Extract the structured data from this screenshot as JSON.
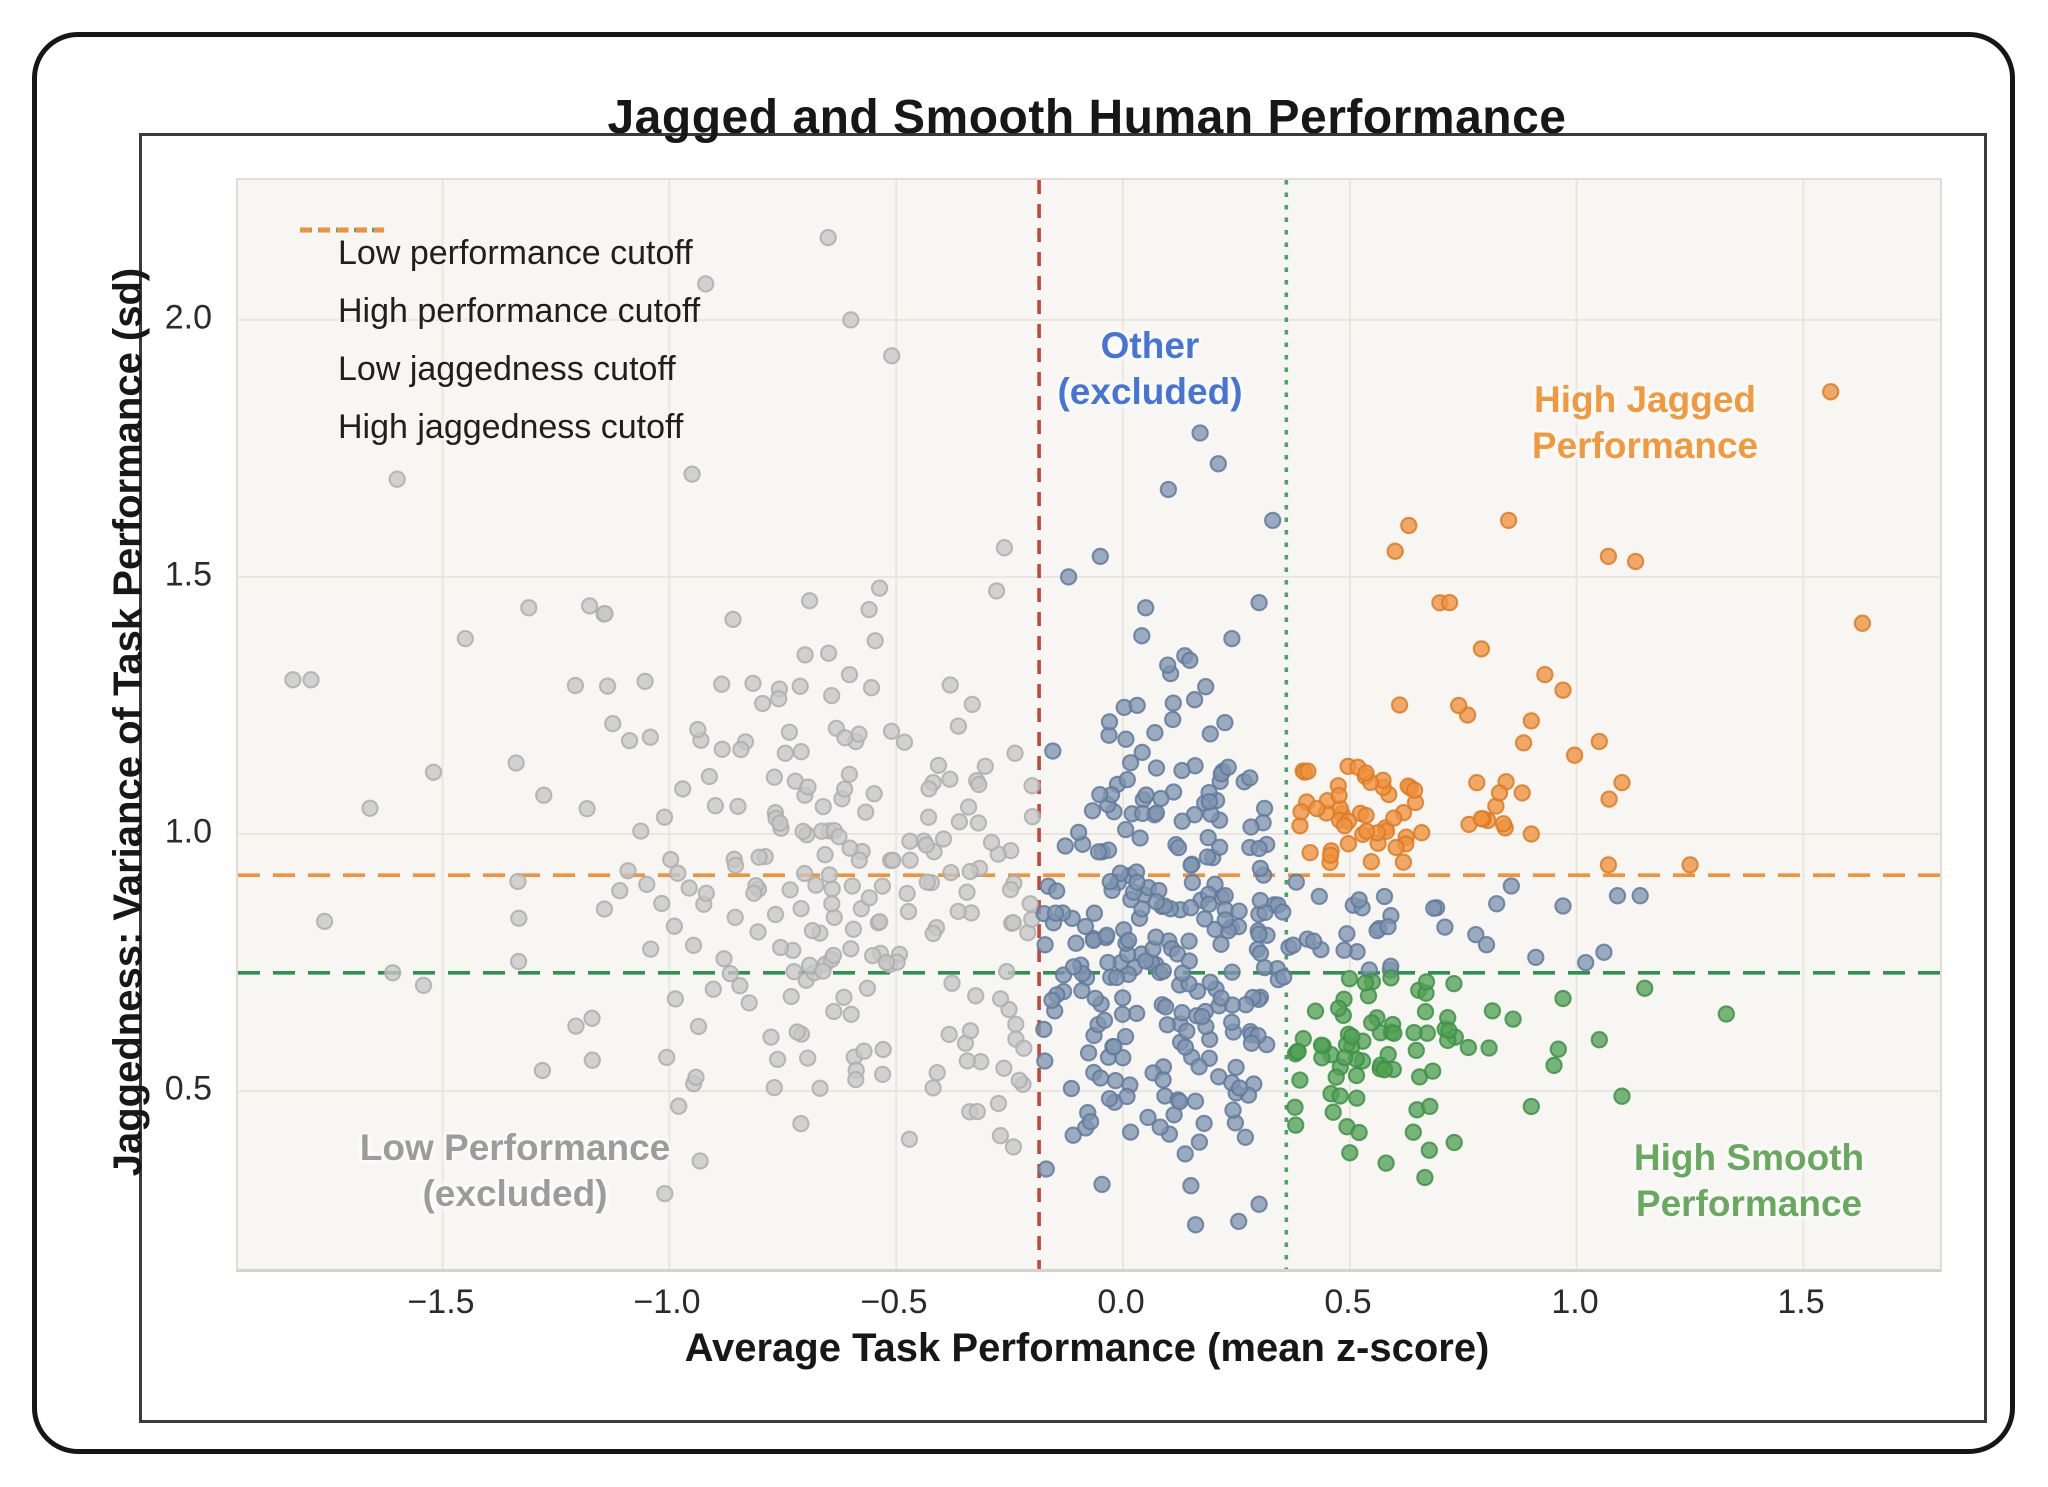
{
  "chart_data": {
    "type": "scatter",
    "title": "Jagged and Smooth Human Performance",
    "xlabel": "Average Task Performance (mean z-score)",
    "ylabel": "Jaggedness: Variance of Task Performance (sd)",
    "xlim": [
      -1.951,
      1.801
    ],
    "ylim": [
      0.154,
      2.272
    ],
    "xticks": [
      {
        "v": -1.5,
        "label": "−1.5"
      },
      {
        "v": -1.0,
        "label": "−1.0"
      },
      {
        "v": -0.5,
        "label": "−0.5"
      },
      {
        "v": 0.0,
        "label": "0.0"
      },
      {
        "v": 0.5,
        "label": "0.5"
      },
      {
        "v": 1.0,
        "label": "1.0"
      },
      {
        "v": 1.5,
        "label": "1.5"
      }
    ],
    "yticks": [
      {
        "v": 0.5,
        "label": "0.5"
      },
      {
        "v": 1.0,
        "label": "1.0"
      },
      {
        "v": 1.5,
        "label": "1.5"
      },
      {
        "v": 2.0,
        "label": "2.0"
      }
    ],
    "grid": true,
    "plot_background": "#f7f6f3",
    "grid_color": "#e9e6e0",
    "legend_position": "upper left",
    "cutoffs": [
      {
        "name": "low-performance-cutoff",
        "label": "Low performance cutoff",
        "orientation": "vertical",
        "value": -0.185,
        "color": "#c0483d",
        "style": "dashed"
      },
      {
        "name": "high-performance-cutoff",
        "label": "High performance cutoff",
        "orientation": "vertical",
        "value": 0.36,
        "color": "#4ca36b",
        "style": "dotted"
      },
      {
        "name": "low-jaggedness-cutoff",
        "label": "Low jaggedness cutoff",
        "orientation": "horizontal",
        "value": 0.73,
        "color": "#2f9150",
        "style": "dashed"
      },
      {
        "name": "high-jaggedness-cutoff",
        "label": "High jaggedness cutoff",
        "orientation": "horizontal",
        "value": 0.92,
        "color": "#f0943c",
        "style": "dashed"
      }
    ],
    "seed": 20240613,
    "point_style": {
      "radius": 7.6,
      "fill_opacity": 0.78,
      "stroke_width": 2.1,
      "stroke_opacity": 0.85
    },
    "groups": [
      {
        "name": "low-performance-excluded",
        "label": "Low Performance (excluded)",
        "fill": "#c7c7c7",
        "stroke": "#aeaeae",
        "clusters": [
          {
            "n": 150,
            "cx": -0.48,
            "cy": 0.88,
            "sx": 0.3,
            "sy": 0.24
          },
          {
            "n": 60,
            "cx": -0.85,
            "cy": 1.05,
            "sx": 0.38,
            "sy": 0.3
          },
          {
            "n": 30,
            "cx": -0.45,
            "cy": 0.62,
            "sx": 0.34,
            "sy": 0.14
          }
        ],
        "bounds": {
          "xmin": -1.93,
          "xmax": -0.195,
          "ymin": 0.28,
          "ymax": 2.2
        },
        "outliers": [
          [
            -0.65,
            2.16
          ],
          [
            -0.92,
            2.07
          ],
          [
            -1.6,
            1.69
          ],
          [
            -1.83,
            1.3
          ],
          [
            -1.79,
            1.3
          ],
          [
            -1.45,
            1.38
          ],
          [
            -1.31,
            1.44
          ],
          [
            -1.66,
            1.05
          ],
          [
            -1.52,
            1.12
          ],
          [
            -1.76,
            0.83
          ],
          [
            -1.28,
            0.54
          ],
          [
            -1.61,
            0.73
          ],
          [
            -0.6,
            2.0
          ],
          [
            -0.51,
            1.93
          ],
          [
            -1.17,
            0.56
          ],
          [
            -0.95,
            1.7
          ]
        ]
      },
      {
        "name": "other-excluded",
        "label": "Other (excluded)",
        "fill": "#8095b0",
        "stroke": "#61799b",
        "clusters": [
          {
            "n": 170,
            "cx": 0.05,
            "cy": 0.82,
            "sx": 0.2,
            "sy": 0.2
          },
          {
            "n": 55,
            "cx": 0.1,
            "cy": 1.07,
            "sx": 0.16,
            "sy": 0.16
          },
          {
            "n": 40,
            "cx": 0.17,
            "cy": 0.6,
            "sx": 0.18,
            "sy": 0.12
          },
          {
            "n": 32,
            "cx": 0.55,
            "cy": 0.825,
            "sx": 0.19,
            "sy": 0.05
          }
        ],
        "bounds": {
          "xmin": -0.175,
          "xmax": 1.35,
          "ymin": 0.2,
          "ymax": 2.15
        },
        "band": {
          "x": 0.355,
          "ymin": 0.735,
          "ymax": 0.915
        },
        "outliers": [
          [
            0.21,
            1.72
          ],
          [
            0.17,
            1.78
          ],
          [
            0.33,
            1.61
          ],
          [
            -0.05,
            1.54
          ],
          [
            0.1,
            1.67
          ],
          [
            0.3,
            1.45
          ],
          [
            0.24,
            1.38
          ],
          [
            -0.12,
            1.5
          ],
          [
            0.05,
            1.44
          ],
          [
            1.09,
            0.88
          ],
          [
            1.02,
            0.75
          ],
          [
            1.06,
            0.77
          ],
          [
            0.97,
            0.86
          ],
          [
            1.14,
            0.88
          ],
          [
            0.91,
            0.76
          ],
          [
            0.3,
            0.28
          ],
          [
            0.16,
            0.24
          ]
        ]
      },
      {
        "name": "high-jagged-performance",
        "label": "High Jagged Performance",
        "fill": "#f0923d",
        "stroke": "#da7b24",
        "clusters": [
          {
            "n": 40,
            "cx": 0.5,
            "cy": 1.01,
            "sx": 0.1,
            "sy": 0.065
          },
          {
            "n": 22,
            "cx": 0.7,
            "cy": 1.13,
            "sx": 0.17,
            "sy": 0.11
          }
        ],
        "bounds": {
          "xmin": 0.375,
          "xmax": 1.7,
          "ymin": 0.935,
          "ymax": 2.05
        },
        "outliers": [
          [
            1.56,
            1.86
          ],
          [
            1.63,
            1.41
          ],
          [
            1.13,
            1.53
          ],
          [
            1.07,
            1.54
          ],
          [
            0.85,
            1.61
          ],
          [
            0.63,
            1.6
          ],
          [
            0.6,
            1.55
          ],
          [
            0.72,
            1.45
          ],
          [
            0.79,
            1.36
          ],
          [
            0.93,
            1.31
          ],
          [
            0.74,
            1.25
          ],
          [
            0.97,
            1.28
          ],
          [
            1.05,
            1.18
          ],
          [
            1.1,
            1.1
          ],
          [
            0.78,
            1.1
          ],
          [
            0.9,
            1.0
          ],
          [
            1.07,
            0.94
          ],
          [
            1.25,
            0.94
          ],
          [
            0.83,
            1.08
          ],
          [
            0.88,
            1.08
          ],
          [
            0.79,
            1.03
          ],
          [
            0.9,
            1.22
          ]
        ]
      },
      {
        "name": "high-smooth-performance",
        "label": "High Smooth Performance",
        "fill": "#52a156",
        "stroke": "#3f8f46",
        "clusters": [
          {
            "n": 55,
            "cx": 0.52,
            "cy": 0.57,
            "sx": 0.11,
            "sy": 0.085
          },
          {
            "n": 16,
            "cx": 0.73,
            "cy": 0.6,
            "sx": 0.14,
            "sy": 0.075
          }
        ],
        "bounds": {
          "xmin": 0.375,
          "xmax": 1.42,
          "ymin": 0.33,
          "ymax": 0.725
        },
        "outliers": [
          [
            1.1,
            0.49
          ],
          [
            1.33,
            0.65
          ],
          [
            0.97,
            0.68
          ],
          [
            1.05,
            0.6
          ],
          [
            0.9,
            0.47
          ],
          [
            0.73,
            0.4
          ],
          [
            0.58,
            0.36
          ],
          [
            0.5,
            0.38
          ],
          [
            0.64,
            0.42
          ],
          [
            0.86,
            0.64
          ],
          [
            0.95,
            0.55
          ],
          [
            1.15,
            0.7
          ]
        ]
      }
    ],
    "annotations": [
      {
        "name": "other-label",
        "lines": [
          "Other",
          "(excluded)"
        ],
        "color": "#4775d6",
        "x": 0.06,
        "y": 1.905
      },
      {
        "name": "high-jagged-label",
        "lines": [
          "High Jagged",
          "Performance"
        ],
        "color": "#f2983d",
        "x": 1.15,
        "y": 1.8
      },
      {
        "name": "low-performance-label",
        "lines": [
          "Low Performance",
          "(excluded)"
        ],
        "color": "#9c9c9c",
        "x": -1.34,
        "y": 0.345
      },
      {
        "name": "high-smooth-label",
        "lines": [
          "High Smooth",
          "Performance"
        ],
        "color": "#68a95d",
        "x": 1.38,
        "y": 0.325
      }
    ]
  }
}
